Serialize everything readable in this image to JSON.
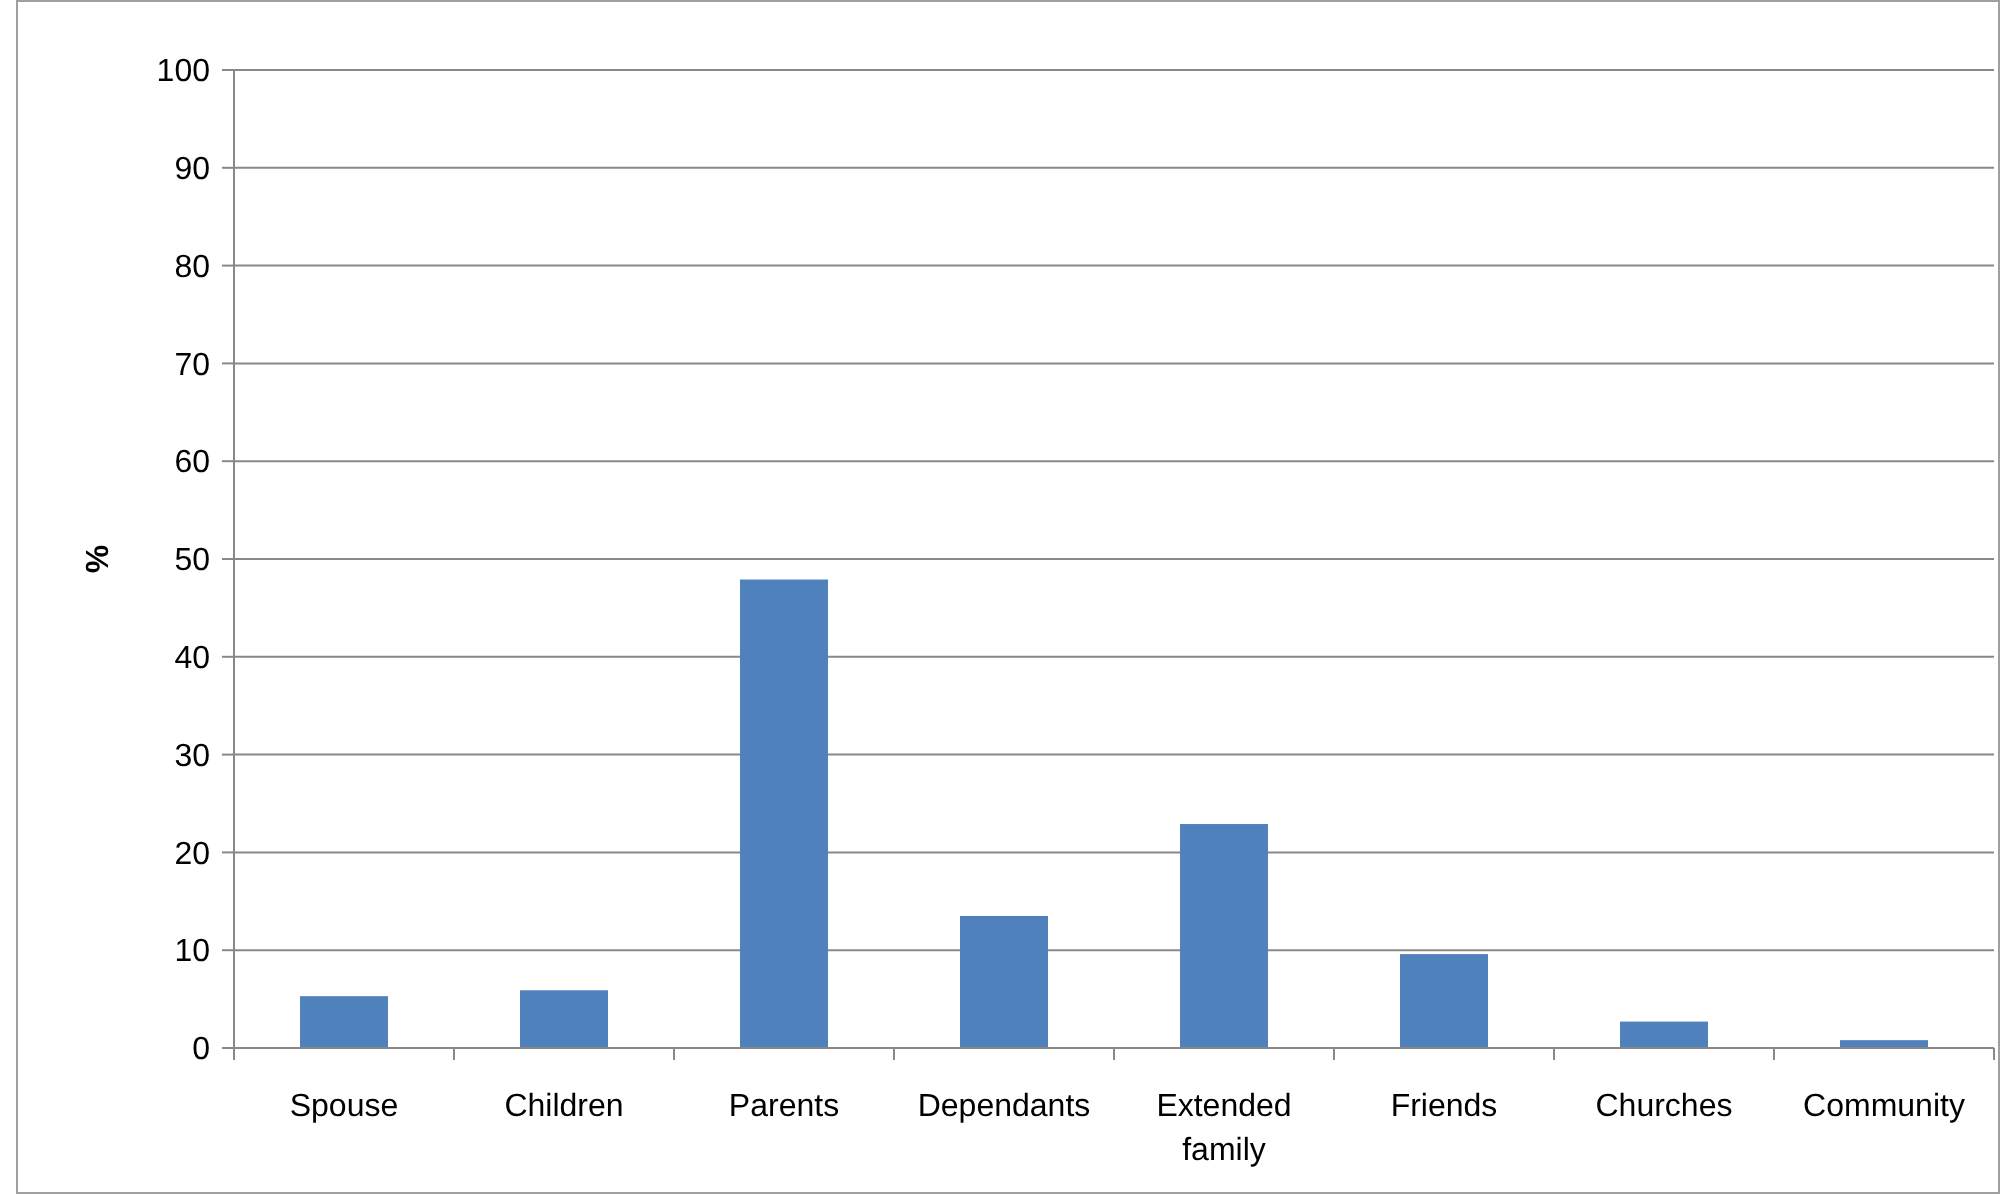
{
  "chart_data": {
    "type": "bar",
    "ylabel": "%",
    "categories": [
      "Spouse",
      "Children",
      "Parents",
      "Dependants",
      "Extended family",
      "Friends",
      "Churches",
      "Community"
    ],
    "values": [
      5.3,
      5.9,
      47.9,
      13.5,
      22.9,
      9.6,
      2.7,
      0.8
    ],
    "color": "#4f81bd",
    "ylim": [
      0,
      100
    ],
    "yticks": [
      0,
      10,
      20,
      30,
      40,
      50,
      60,
      70,
      80,
      90,
      100
    ],
    "grid": "y"
  }
}
